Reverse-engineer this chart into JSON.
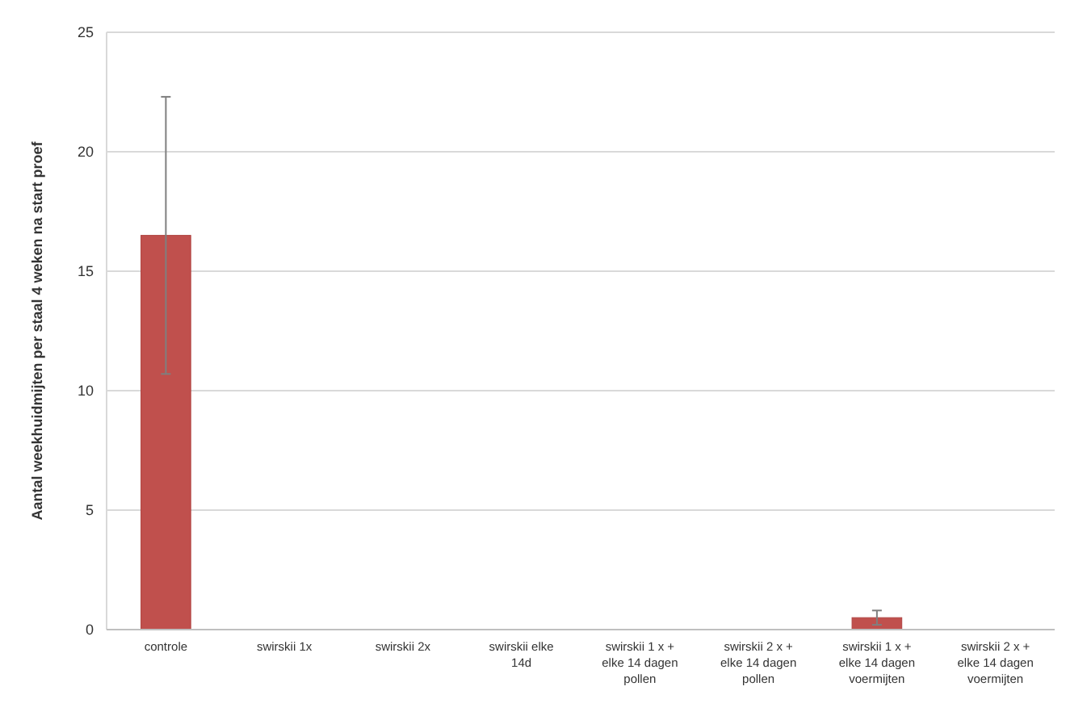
{
  "chart_data": {
    "type": "bar",
    "ylabel": "Aantal weekhuidmijten per staal 4 weken na start proef",
    "categories": [
      "controle",
      "swirskii 1x",
      "swirskii 2x",
      "swirskii elke 14d",
      "swirskii 1 x + elke 14 dagen pollen",
      "swirskii 2 x + elke 14 dagen pollen",
      "swirskii 1 x + elke 14 dagen voermijten",
      "swirskii 2 x + elke 14 dagen voermijten"
    ],
    "values": [
      16.5,
      0,
      0,
      0,
      0,
      0,
      0.5,
      0
    ],
    "errors": [
      5.8,
      null,
      null,
      null,
      null,
      null,
      0.3,
      null
    ],
    "color": "#c0504d",
    "ylim": [
      0,
      25
    ],
    "yticks": [
      0,
      5,
      10,
      15,
      20,
      25
    ],
    "grid": "y"
  }
}
